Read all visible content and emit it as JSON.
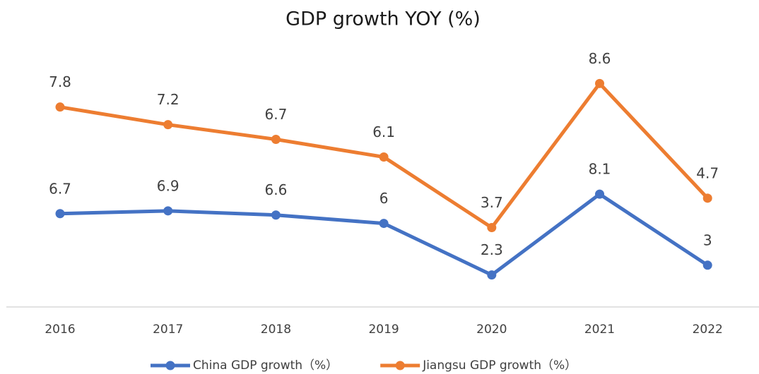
{
  "chart_data": {
    "type": "line",
    "title": "GDP growth YOY (%)",
    "categories": [
      "2016",
      "2017",
      "2018",
      "2019",
      "2020",
      "2021",
      "2022"
    ],
    "series": [
      {
        "name": "China GDP growth（%）",
        "color": "#4472c4",
        "axis": "y2",
        "values": [
          6.7,
          6.9,
          6.6,
          6,
          2.3,
          8.1,
          3
        ]
      },
      {
        "name": "Jiangsu GDP growth（%）",
        "color": "#ed7d31",
        "values": [
          7.8,
          7.2,
          6.7,
          6.1,
          3.7,
          8.6,
          4.7
        ]
      }
    ],
    "ylim": [
      1,
      10
    ],
    "y2lim": [
      0,
      19
    ],
    "legend": "bottom"
  }
}
